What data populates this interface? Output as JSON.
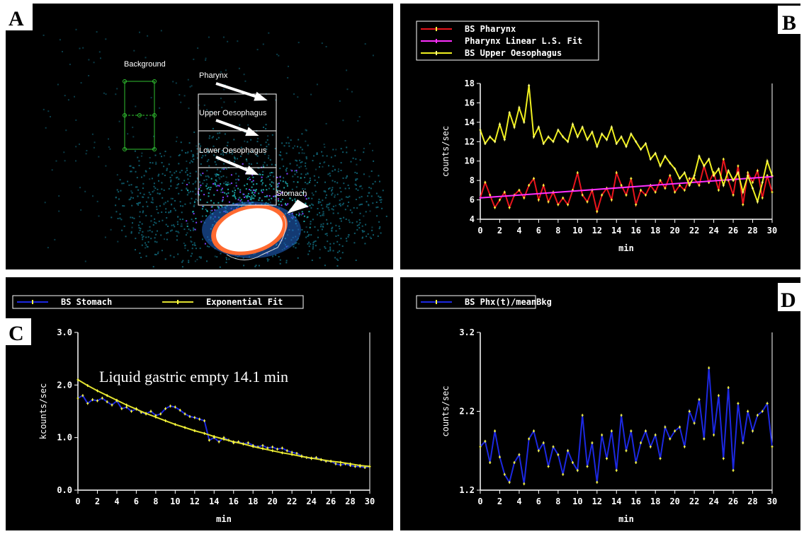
{
  "image_panel": {
    "panel": "A",
    "labels": [
      "Background",
      "Pharynx",
      "Upper Oesophagus",
      "Lower Oesophagus",
      "Stomach"
    ]
  },
  "chart_data": [
    {
      "type": "line",
      "panel": "B",
      "x_label": "min",
      "y_label": "counts/sec",
      "xlim": [
        0,
        30
      ],
      "xticks": [
        0,
        2,
        4,
        6,
        8,
        10,
        12,
        14,
        16,
        18,
        20,
        22,
        24,
        26,
        28,
        30
      ],
      "ylim": [
        4,
        18
      ],
      "yticks": [
        4,
        6,
        8,
        10,
        12,
        14,
        16,
        18
      ],
      "x": [
        0,
        0.5,
        1,
        1.5,
        2,
        2.5,
        3,
        3.5,
        4,
        4.5,
        5,
        5.5,
        6,
        6.5,
        7,
        7.5,
        8,
        8.5,
        9,
        9.5,
        10,
        10.5,
        11,
        11.5,
        12,
        12.5,
        13,
        13.5,
        14,
        14.5,
        15,
        15.5,
        16,
        16.5,
        17,
        17.5,
        18,
        18.5,
        19,
        19.5,
        20,
        20.5,
        21,
        21.5,
        22,
        22.5,
        23,
        23.5,
        24,
        24.5,
        25,
        25.5,
        26,
        26.5,
        27,
        27.5,
        28,
        28.5,
        29,
        29.5,
        30
      ],
      "series": [
        {
          "name": "BS Pharynx",
          "color": "#e8141c",
          "marker_color": "#ffff40",
          "values": [
            6.2,
            7.8,
            6.5,
            5.2,
            6.0,
            6.8,
            5.2,
            6.5,
            7.0,
            6.2,
            7.5,
            8.2,
            6.0,
            7.5,
            5.8,
            6.8,
            5.5,
            6.2,
            5.5,
            7.0,
            8.8,
            6.5,
            5.8,
            7.0,
            4.8,
            6.5,
            7.2,
            6.0,
            8.8,
            7.5,
            6.5,
            8.2,
            5.5,
            7.0,
            6.5,
            7.5,
            6.8,
            8.0,
            7.2,
            8.5,
            6.8,
            7.5,
            7.0,
            8.2,
            8.2,
            7.5,
            9.5,
            7.8,
            8.8,
            7.0,
            10.2,
            8.0,
            6.5,
            9.5,
            5.5,
            8.8,
            7.8,
            9.0,
            6.2,
            8.5,
            6.8
          ]
        },
        {
          "name": "Pharynx Linear L.S. Fit",
          "color": "#ff30ff",
          "marker_color": "#ff30ff",
          "x": [
            0,
            30
          ],
          "values": [
            6.2,
            8.4
          ]
        },
        {
          "name": "BS Upper Oesophagus",
          "color": "#f0f020",
          "marker_color": "#ffff80",
          "values": [
            13.2,
            11.8,
            12.5,
            12.0,
            13.8,
            12.2,
            15.0,
            13.5,
            15.5,
            14.0,
            17.8,
            12.5,
            13.5,
            11.8,
            12.5,
            12.0,
            13.2,
            12.5,
            12.0,
            13.8,
            12.5,
            13.5,
            12.2,
            13.0,
            11.5,
            12.8,
            12.2,
            13.5,
            11.8,
            12.5,
            11.5,
            12.8,
            12.0,
            11.2,
            11.8,
            10.2,
            10.8,
            9.5,
            10.5,
            9.8,
            9.2,
            8.2,
            8.8,
            7.5,
            8.5,
            10.5,
            9.5,
            10.2,
            8.5,
            9.2,
            7.5,
            9.0,
            8.0,
            8.8,
            6.8,
            8.5,
            7.2,
            5.8,
            7.8,
            10.0,
            8.5
          ]
        }
      ]
    },
    {
      "type": "line",
      "panel": "C",
      "x_label": "min",
      "y_label": "kcounts/sec",
      "annotation": "Liquid gastric empty  14.1 min",
      "xlim": [
        0,
        30
      ],
      "xticks": [
        0,
        2,
        4,
        6,
        8,
        10,
        12,
        14,
        16,
        18,
        20,
        22,
        24,
        26,
        28,
        30
      ],
      "ylim": [
        0,
        3
      ],
      "yticks": [
        {
          "value": 0,
          "label": "0.0"
        },
        {
          "value": 1,
          "label": "1.0"
        },
        {
          "value": 2,
          "label": "2.0"
        },
        {
          "value": 3,
          "label": "3.0"
        }
      ],
      "x": [
        0,
        0.5,
        1,
        1.5,
        2,
        2.5,
        3,
        3.5,
        4,
        4.5,
        5,
        5.5,
        6,
        6.5,
        7,
        7.5,
        8,
        8.5,
        9,
        9.5,
        10,
        10.5,
        11,
        11.5,
        12,
        12.5,
        13,
        13.5,
        14,
        14.5,
        15,
        15.5,
        16,
        16.5,
        17,
        17.5,
        18,
        18.5,
        19,
        19.5,
        20,
        20.5,
        21,
        21.5,
        22,
        22.5,
        23,
        23.5,
        24,
        24.5,
        25,
        25.5,
        26,
        26.5,
        27,
        27.5,
        28,
        28.5,
        29,
        29.5,
        30
      ],
      "series": [
        {
          "name": "BS Stomach",
          "color": "#1c28e0",
          "marker_color": "#ffff40",
          "values": [
            1.75,
            1.8,
            1.65,
            1.72,
            1.7,
            1.75,
            1.68,
            1.62,
            1.7,
            1.55,
            1.58,
            1.5,
            1.55,
            1.48,
            1.45,
            1.5,
            1.42,
            1.45,
            1.55,
            1.6,
            1.58,
            1.52,
            1.45,
            1.4,
            1.38,
            1.35,
            1.32,
            0.95,
            1.0,
            0.92,
            1.0,
            0.95,
            0.9,
            0.92,
            0.88,
            0.9,
            0.85,
            0.82,
            0.85,
            0.8,
            0.82,
            0.78,
            0.8,
            0.75,
            0.72,
            0.7,
            0.65,
            0.62,
            0.6,
            0.62,
            0.58,
            0.55,
            0.55,
            0.5,
            0.48,
            0.5,
            0.47,
            0.45,
            0.45,
            0.43,
            0.45
          ]
        },
        {
          "name": "Exponential Fit",
          "color": "#e0e030",
          "marker_color": "#ffff40",
          "x": [
            0,
            1,
            2,
            3,
            4,
            5,
            6,
            7,
            8,
            9,
            10,
            11,
            12,
            13,
            14,
            15,
            16,
            17,
            18,
            19,
            20,
            21,
            22,
            23,
            24,
            25,
            26,
            27,
            28,
            29,
            30
          ],
          "values": [
            2.1,
            1.99,
            1.89,
            1.8,
            1.71,
            1.62,
            1.54,
            1.46,
            1.39,
            1.32,
            1.25,
            1.19,
            1.13,
            1.08,
            1.02,
            0.97,
            0.92,
            0.88,
            0.83,
            0.79,
            0.75,
            0.71,
            0.68,
            0.64,
            0.61,
            0.58,
            0.55,
            0.53,
            0.5,
            0.47,
            0.45
          ]
        }
      ]
    },
    {
      "type": "line",
      "panel": "D",
      "x_label": "min",
      "y_label": "counts/sec",
      "xlim": [
        0,
        30
      ],
      "xticks": [
        0,
        2,
        4,
        6,
        8,
        10,
        12,
        14,
        16,
        18,
        20,
        22,
        24,
        26,
        28,
        30
      ],
      "ylim": [
        1.2,
        3.2
      ],
      "yticks": [
        1.2,
        2.2,
        3.2
      ],
      "x": [
        0,
        0.5,
        1,
        1.5,
        2,
        2.5,
        3,
        3.5,
        4,
        4.5,
        5,
        5.5,
        6,
        6.5,
        7,
        7.5,
        8,
        8.5,
        9,
        9.5,
        10,
        10.5,
        11,
        11.5,
        12,
        12.5,
        13,
        13.5,
        14,
        14.5,
        15,
        15.5,
        16,
        16.5,
        17,
        17.5,
        18,
        18.5,
        19,
        19.5,
        20,
        20.5,
        21,
        21.5,
        22,
        22.5,
        23,
        23.5,
        24,
        24.5,
        25,
        25.5,
        26,
        26.5,
        27,
        27.5,
        28,
        28.5,
        29,
        29.5,
        30
      ],
      "series": [
        {
          "name": "BS Phx(t)/meanBkg",
          "color": "#1c28e0",
          "marker_color": "#ffff40",
          "values": [
            1.75,
            1.82,
            1.55,
            1.95,
            1.62,
            1.4,
            1.3,
            1.55,
            1.65,
            1.28,
            1.85,
            1.95,
            1.7,
            1.8,
            1.5,
            1.75,
            1.65,
            1.4,
            1.7,
            1.55,
            1.45,
            2.15,
            1.5,
            1.8,
            1.3,
            1.9,
            1.6,
            1.95,
            1.45,
            2.15,
            1.7,
            1.95,
            1.55,
            1.8,
            1.95,
            1.75,
            1.9,
            1.6,
            2.0,
            1.85,
            1.95,
            2.0,
            1.75,
            2.2,
            2.05,
            2.35,
            1.85,
            2.75,
            1.9,
            2.4,
            1.6,
            2.5,
            1.45,
            2.3,
            1.8,
            2.2,
            1.95,
            2.15,
            2.2,
            2.3,
            1.75
          ]
        }
      ]
    }
  ]
}
